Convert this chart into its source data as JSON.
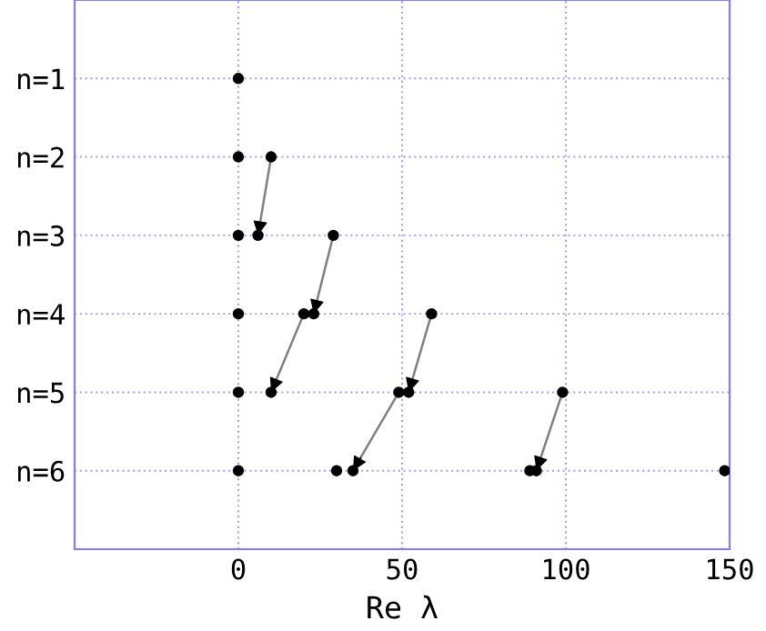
{
  "chart_data": {
    "type": "scatter",
    "xlabel": "Re λ",
    "xlim": [
      -50,
      150
    ],
    "xticks": [
      0,
      50,
      100,
      150
    ],
    "ylim": [
      7,
      0
    ],
    "yticks": [
      {
        "value": 1,
        "label": "n=1"
      },
      {
        "value": 2,
        "label": "n=2"
      },
      {
        "value": 3,
        "label": "n=3"
      },
      {
        "value": 4,
        "label": "n=4"
      },
      {
        "value": 5,
        "label": "n=5"
      },
      {
        "value": 6,
        "label": "n=6"
      }
    ],
    "grid": true,
    "marker": "circle",
    "series": [
      {
        "color": "#000000",
        "x": [
          0,
          0,
          10,
          0,
          6,
          29,
          0,
          20,
          23,
          59,
          0,
          10,
          49,
          52,
          99,
          0,
          30,
          35,
          89,
          91,
          148.5
        ],
        "values": [
          1,
          2,
          2,
          3,
          3,
          3,
          4,
          4,
          4,
          4,
          5,
          5,
          5,
          5,
          5,
          6,
          6,
          6,
          6,
          6,
          6
        ]
      },
      {
        "type": "line",
        "marker": "none",
        "color": "#808080",
        "x": [
          10,
          6
        ],
        "values": [
          2,
          3
        ]
      },
      {
        "type": "line",
        "marker": "none",
        "color": "#808080",
        "x": [
          29,
          23
        ],
        "values": [
          3,
          4
        ]
      },
      {
        "type": "line",
        "marker": "none",
        "color": "#808080",
        "x": [
          20,
          10
        ],
        "values": [
          4,
          5
        ]
      },
      {
        "type": "line",
        "marker": "none",
        "color": "#808080",
        "x": [
          59,
          52
        ],
        "values": [
          4,
          5
        ]
      },
      {
        "type": "line",
        "marker": "none",
        "color": "#808080",
        "x": [
          49,
          35
        ],
        "values": [
          5,
          6
        ]
      },
      {
        "type": "line",
        "marker": "none",
        "color": "#808080",
        "x": [
          99,
          91
        ],
        "values": [
          5,
          6
        ]
      }
    ]
  }
}
